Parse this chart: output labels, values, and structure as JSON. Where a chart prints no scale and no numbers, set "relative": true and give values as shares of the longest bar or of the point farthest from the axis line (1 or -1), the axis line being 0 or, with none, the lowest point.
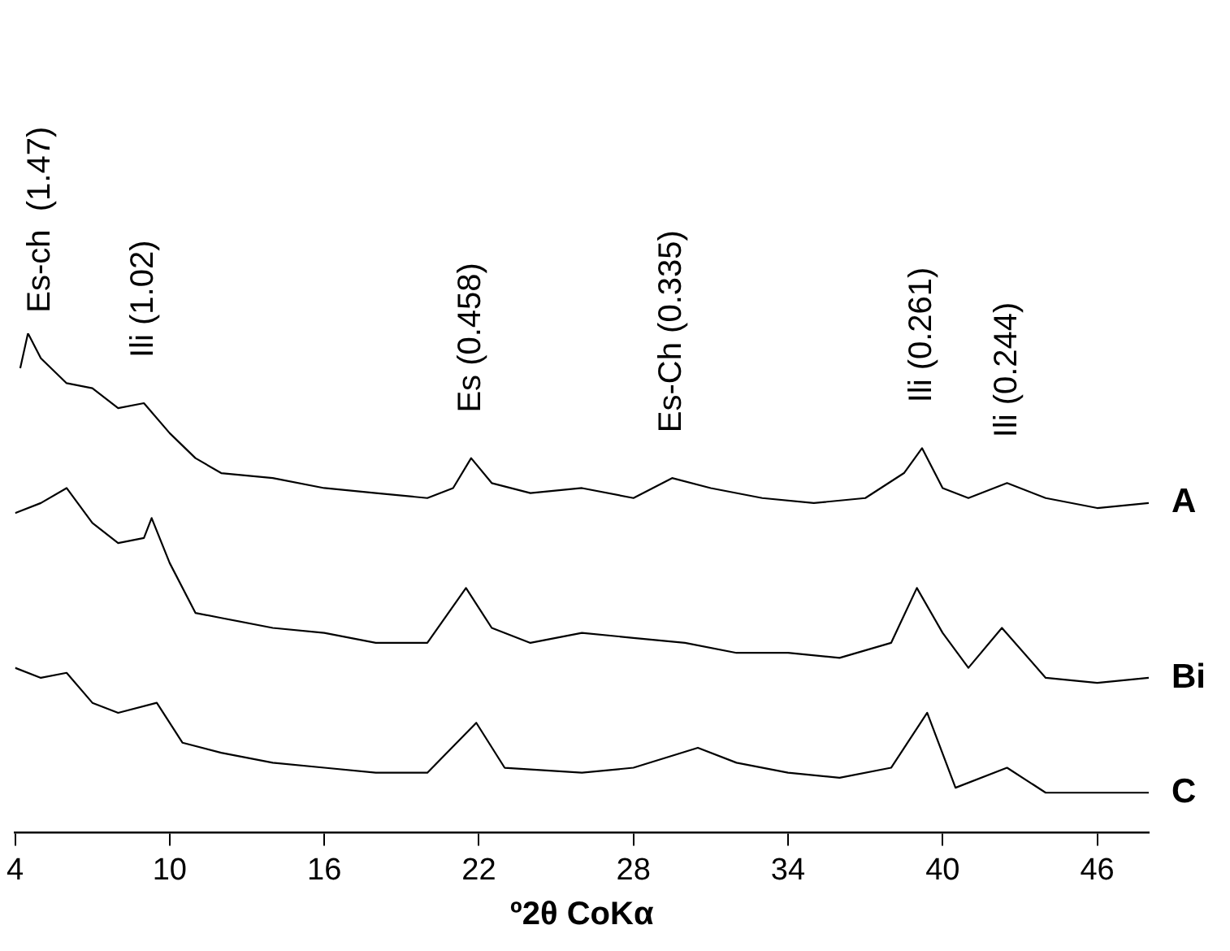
{
  "chart_data": {
    "type": "line",
    "relative": true,
    "xlabel": "º2θ CoKα",
    "xlim": [
      4,
      48
    ],
    "xticks": [
      4,
      10,
      16,
      22,
      28,
      34,
      40,
      46
    ],
    "tick_labels": "x",
    "grid": false,
    "legend": false,
    "marker": "none",
    "series": [
      {
        "name": "A",
        "color": "#000000",
        "x": [
          4.2,
          4.5,
          5,
          6,
          7,
          8,
          9,
          10,
          11,
          12,
          14,
          16,
          18,
          20,
          21,
          21.7,
          22.5,
          24,
          26,
          28,
          29.5,
          31,
          33,
          35,
          37,
          38.5,
          39.2,
          40,
          41,
          42.5,
          44,
          46,
          48
        ],
        "values": [
          0.93,
          1,
          0.95,
          0.9,
          0.89,
          0.85,
          0.86,
          0.8,
          0.75,
          0.72,
          0.71,
          0.69,
          0.68,
          0.67,
          0.69,
          0.75,
          0.7,
          0.68,
          0.69,
          0.67,
          0.71,
          0.69,
          0.67,
          0.66,
          0.67,
          0.72,
          0.77,
          0.69,
          0.67,
          0.7,
          0.67,
          0.65,
          0.66
        ]
      },
      {
        "name": "Bi",
        "color": "#000000",
        "x": [
          4,
          5,
          6,
          7,
          8,
          9,
          9.3,
          10,
          11,
          12,
          14,
          16,
          18,
          20,
          21.5,
          22.5,
          24,
          26,
          28,
          30,
          32,
          34,
          36,
          38,
          39,
          40,
          41,
          42.3,
          44,
          46,
          48
        ],
        "values": [
          0.64,
          0.66,
          0.69,
          0.62,
          0.58,
          0.59,
          0.63,
          0.54,
          0.44,
          0.43,
          0.41,
          0.4,
          0.38,
          0.38,
          0.49,
          0.41,
          0.38,
          0.4,
          0.39,
          0.38,
          0.36,
          0.36,
          0.35,
          0.38,
          0.49,
          0.4,
          0.33,
          0.41,
          0.31,
          0.3,
          0.31
        ]
      },
      {
        "name": "C",
        "color": "#000000",
        "x": [
          4,
          5,
          6,
          7,
          8,
          9.5,
          10.5,
          12,
          14,
          16,
          18,
          20,
          21.9,
          23,
          26,
          28,
          30.5,
          32,
          34,
          36,
          38,
          39.4,
          40.5,
          42.5,
          44,
          46,
          48
        ],
        "values": [
          0.33,
          0.31,
          0.32,
          0.26,
          0.24,
          0.26,
          0.18,
          0.16,
          0.14,
          0.13,
          0.12,
          0.12,
          0.22,
          0.13,
          0.12,
          0.13,
          0.17,
          0.14,
          0.12,
          0.11,
          0.13,
          0.24,
          0.09,
          0.13,
          0.08,
          0.08,
          0.08
        ]
      }
    ],
    "annotations": [
      {
        "text": "Es-ch  (1.47)",
        "x": 5,
        "y": 0.95
      },
      {
        "text": "Ili (1.02)",
        "x": 9,
        "y": 0.86
      },
      {
        "text": "Es (0.458)",
        "x": 21.7,
        "y": 0.75
      },
      {
        "text": "Es-Ch (0.335)",
        "x": 29.5,
        "y": 0.71
      },
      {
        "text": "Ili (0.261)",
        "x": 39.2,
        "y": 0.77
      },
      {
        "text": "Ili (0.244)",
        "x": 42.5,
        "y": 0.7
      }
    ]
  }
}
